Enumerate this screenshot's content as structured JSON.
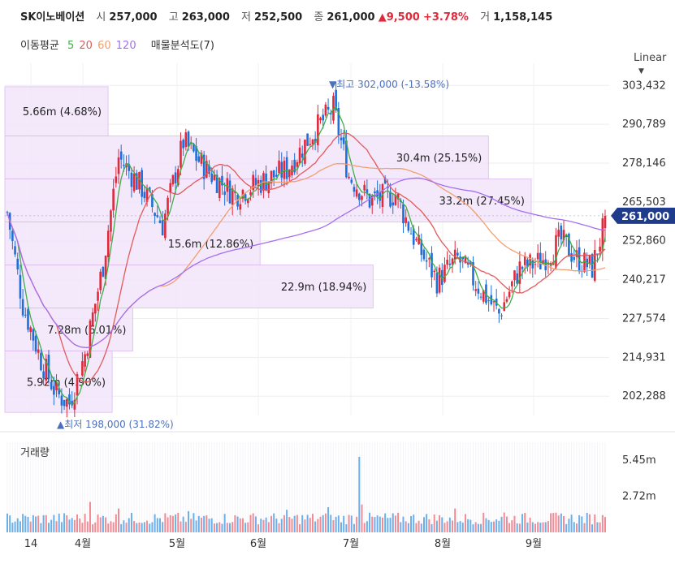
{
  "header": {
    "name": "SK이노베이션",
    "open_label": "시",
    "open": "257,000",
    "high_label": "고",
    "high": "263,000",
    "low_label": "저",
    "low": "252,500",
    "close_label": "종",
    "close": "261,000",
    "change": "▲9,500",
    "change_pct": "+3.78%",
    "volume_label": "거",
    "volume": "1,158,145"
  },
  "indicators": {
    "label": "이동평균",
    "ma5": "5",
    "ma20": "20",
    "ma60": "60",
    "ma120": "120",
    "vp": "매물분석도(7)"
  },
  "colors": {
    "up": "#e0293b",
    "down": "#1e6fd9",
    "ma5": "#3fae49",
    "ma20": "#e35a5a",
    "ma60": "#f0a070",
    "ma120": "#a56ef0",
    "zone": "#f3e4fb",
    "zone_border": "#dcbdef",
    "price_tag": "#1f3b8c"
  },
  "scale_label": "Linear",
  "volume_label": "거래량",
  "chart_data": {
    "type": "candlestick",
    "ylim": [
      196000,
      308000
    ],
    "y_ticks": [
      "303,432",
      "290,789",
      "278,146",
      "265,503",
      "252,860",
      "240,217",
      "227,574",
      "214,931",
      "202,288"
    ],
    "y_tick_values": [
      303432,
      290789,
      278146,
      265503,
      252860,
      240217,
      227574,
      214931,
      202288
    ],
    "x_labels": [
      "14",
      "4월",
      "5월",
      "6월",
      "7월",
      "8월",
      "9월"
    ],
    "last_price": "261,000",
    "last_value": 261000,
    "high_annotation": "▼최고 302,000 (-13.58%)",
    "low_annotation": "▲최저 198,000 (31.82%)",
    "volume_ticks": [
      "5.45m",
      "2.72m"
    ],
    "volume_tick_values": [
      5450000,
      2720000
    ],
    "volume_profile": [
      {
        "label": "5.66m (4.68%)",
        "low": 287000,
        "high": 303000
      },
      {
        "label": "30.4m (25.15%)",
        "low": 273000,
        "high": 287000
      },
      {
        "label": "33.2m (27.45%)",
        "low": 259000,
        "high": 273000
      },
      {
        "label": "15.6m (12.86%)",
        "low": 245000,
        "high": 259000
      },
      {
        "label": "22.9m (18.94%)",
        "low": 231000,
        "high": 245000
      },
      {
        "label": "7.28m (6.01%)",
        "low": 217000,
        "high": 231000
      },
      {
        "label": "5.92m (4.90%)",
        "low": 197000,
        "high": 217000
      }
    ],
    "volume_profile_share": [
      4.68,
      25.15,
      27.45,
      12.86,
      18.94,
      6.01,
      4.9
    ]
  }
}
